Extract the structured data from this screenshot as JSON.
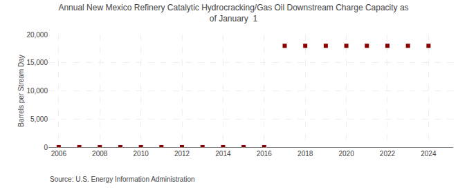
{
  "chart_data": {
    "type": "scatter",
    "title": "Annual New Mexico Refinery Catalytic Hydrocracking/Gas Oil Downstream Charge Capacity as\nof January  1",
    "ylabel": "Barrels per Stream Day",
    "annotations": [
      "Source: U.S. Energy Information Administration"
    ],
    "x": [
      2006,
      2007,
      2008,
      2009,
      2010,
      2011,
      2012,
      2013,
      2014,
      2015,
      2016,
      2017,
      2018,
      2019,
      2020,
      2021,
      2022,
      2023,
      2024
    ],
    "values": [
      0,
      0,
      0,
      0,
      0,
      0,
      0,
      0,
      0,
      0,
      0,
      18000,
      18000,
      18000,
      18000,
      18000,
      18000,
      18000,
      18000
    ],
    "color": "#8b0000",
    "marker": "square",
    "xlim": [
      2005.5,
      2025.2
    ],
    "xticks": [
      2006,
      2008,
      2010,
      2012,
      2014,
      2016,
      2018,
      2020,
      2022,
      2024
    ],
    "ylim": [
      0,
      20000
    ],
    "yticks": [
      0,
      {
        "value": 5000,
        "label": "5,000"
      },
      {
        "value": 10000,
        "label": "10,000"
      },
      {
        "value": 15000,
        "label": "15,000"
      },
      {
        "value": 20000,
        "label": "20,000"
      }
    ],
    "grid": true
  }
}
